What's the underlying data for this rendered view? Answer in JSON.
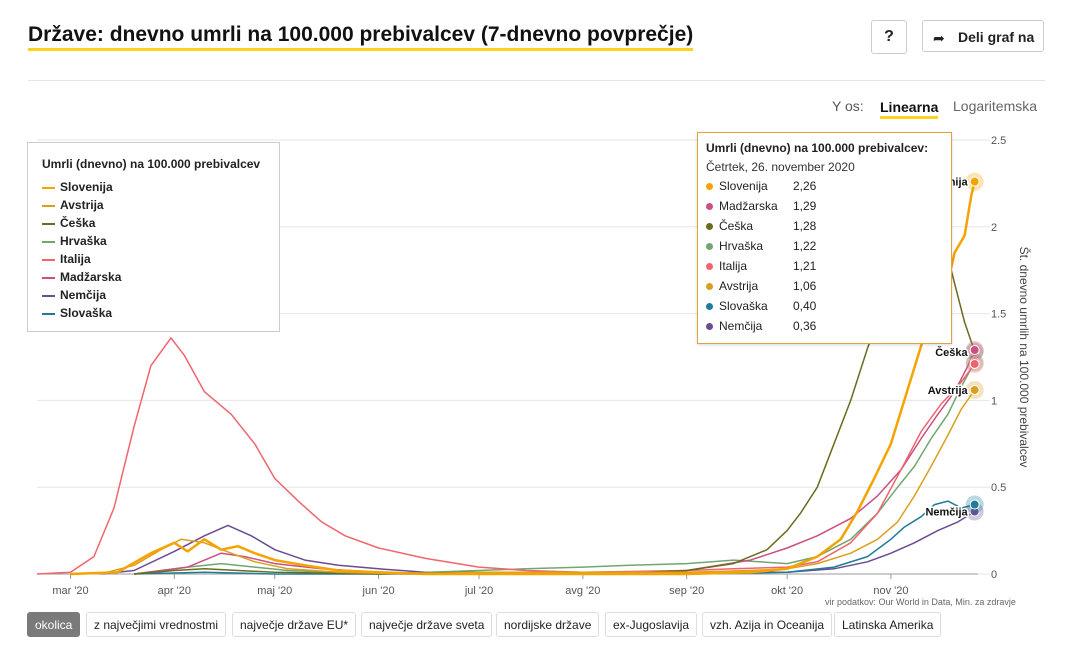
{
  "header": {
    "title": "Države: dnevno umrli na 100.000 prebivalcev (7-dnevno povprečje)",
    "help_label": "?",
    "share_label": "Deli graf na"
  },
  "yaxis_toggle": {
    "label": "Y os:",
    "linear": "Linearna",
    "log": "Logaritemska",
    "selected": "Linearna"
  },
  "legend": {
    "title": "Umrli (dnevno) na 100.000 prebivalcev"
  },
  "tooltip": {
    "title": "Umrli (dnevno) na 100.000 prebivalcev:",
    "date": "Četrtek, 26. november 2020",
    "rows": [
      {
        "name": "Slovenija",
        "value": "2,26",
        "color": "#f5a300"
      },
      {
        "name": "Madžarska",
        "value": "1,29",
        "color": "#c95081"
      },
      {
        "name": "Češka",
        "value": "1,28",
        "color": "#6b6b1f"
      },
      {
        "name": "Hrvaška",
        "value": "1,22",
        "color": "#6fa76f"
      },
      {
        "name": "Italija",
        "value": "1,21",
        "color": "#f0646e"
      },
      {
        "name": "Avstrija",
        "value": "1,06",
        "color": "#d9a020"
      },
      {
        "name": "Slovaška",
        "value": "0,40",
        "color": "#1f7c99"
      },
      {
        "name": "Nemčija",
        "value": "0,36",
        "color": "#6a4c93"
      }
    ]
  },
  "end_labels": [
    "Slovenija",
    "Češka",
    "Avstrija",
    "Nemčija"
  ],
  "source": "vir podatkov: Our World in Data, Min. za zdravje",
  "groups": [
    {
      "label": "okolica",
      "active": true
    },
    {
      "label": "z največjimi vrednostmi",
      "active": false
    },
    {
      "label": "največje države EU*",
      "active": false
    },
    {
      "label": "največje države sveta",
      "active": false
    },
    {
      "label": "nordijske države",
      "active": false
    },
    {
      "label": "ex-Jugoslavija",
      "active": false
    },
    {
      "label": "vzh. Azija in Oceanija",
      "active": false
    },
    {
      "label": "Latinska Amerika",
      "active": false
    }
  ],
  "chart_data": {
    "type": "line",
    "ylabel": "Št. dnevno umrlih na 100.000 prebivalcev",
    "ylim": [
      0,
      2.5
    ],
    "yticks": [
      0,
      0.5,
      1,
      1.5,
      2,
      2.5
    ],
    "ytick_labels": [
      "0",
      "0.5",
      "1",
      "1.5",
      "2",
      "2.5"
    ],
    "x_range": [
      "2020-02-20",
      "2020-11-27"
    ],
    "xticks": [
      "2020-03-01",
      "2020-04-01",
      "2020-05-01",
      "2020-06-01",
      "2020-07-01",
      "2020-08-01",
      "2020-09-01",
      "2020-10-01",
      "2020-11-01"
    ],
    "xtick_labels": [
      "mar '20",
      "apr '20",
      "maj '20",
      "jun '20",
      "jul '20",
      "avg '20",
      "sep '20",
      "okt '20",
      "nov '20"
    ],
    "grid": true,
    "legend_position": "top-left",
    "series": [
      {
        "name": "Slovenija",
        "color": "#f5a300",
        "width": 2.5,
        "points": [
          [
            "2020-03-01",
            0
          ],
          [
            "2020-03-15",
            0.01
          ],
          [
            "2020-03-25",
            0.12
          ],
          [
            "2020-04-01",
            0.18
          ],
          [
            "2020-04-05",
            0.13
          ],
          [
            "2020-04-10",
            0.2
          ],
          [
            "2020-04-15",
            0.14
          ],
          [
            "2020-04-20",
            0.16
          ],
          [
            "2020-04-25",
            0.12
          ],
          [
            "2020-05-01",
            0.08
          ],
          [
            "2020-05-10",
            0.05
          ],
          [
            "2020-05-20",
            0.02
          ],
          [
            "2020-06-01",
            0.01
          ],
          [
            "2020-06-15",
            0.0
          ],
          [
            "2020-07-01",
            0.0
          ],
          [
            "2020-08-01",
            0.0
          ],
          [
            "2020-09-01",
            0.0
          ],
          [
            "2020-09-20",
            0.01
          ],
          [
            "2020-10-01",
            0.03
          ],
          [
            "2020-10-10",
            0.1
          ],
          [
            "2020-10-17",
            0.2
          ],
          [
            "2020-10-22",
            0.36
          ],
          [
            "2020-10-27",
            0.55
          ],
          [
            "2020-11-01",
            0.75
          ],
          [
            "2020-11-05",
            1.0
          ],
          [
            "2020-11-09",
            1.25
          ],
          [
            "2020-11-13",
            1.5
          ],
          [
            "2020-11-17",
            1.6
          ],
          [
            "2020-11-20",
            1.85
          ],
          [
            "2020-11-23",
            1.95
          ],
          [
            "2020-11-25",
            2.18
          ],
          [
            "2020-11-26",
            2.26
          ]
        ]
      },
      {
        "name": "Avstrija",
        "color": "#d9a020",
        "width": 1.5,
        "points": [
          [
            "2020-03-10",
            0
          ],
          [
            "2020-03-20",
            0.05
          ],
          [
            "2020-03-28",
            0.14
          ],
          [
            "2020-04-03",
            0.2
          ],
          [
            "2020-04-10",
            0.18
          ],
          [
            "2020-04-18",
            0.12
          ],
          [
            "2020-04-25",
            0.07
          ],
          [
            "2020-05-05",
            0.03
          ],
          [
            "2020-05-20",
            0.01
          ],
          [
            "2020-06-10",
            0.0
          ],
          [
            "2020-07-01",
            0.01
          ],
          [
            "2020-08-01",
            0.01
          ],
          [
            "2020-09-01",
            0.01
          ],
          [
            "2020-09-20",
            0.02
          ],
          [
            "2020-10-01",
            0.03
          ],
          [
            "2020-10-10",
            0.06
          ],
          [
            "2020-10-20",
            0.12
          ],
          [
            "2020-10-28",
            0.2
          ],
          [
            "2020-11-03",
            0.3
          ],
          [
            "2020-11-08",
            0.45
          ],
          [
            "2020-11-13",
            0.62
          ],
          [
            "2020-11-18",
            0.8
          ],
          [
            "2020-11-22",
            0.95
          ],
          [
            "2020-11-26",
            1.06
          ]
        ]
      },
      {
        "name": "Češka",
        "color": "#6b6b1f",
        "width": 1.5,
        "points": [
          [
            "2020-03-20",
            0
          ],
          [
            "2020-04-01",
            0.02
          ],
          [
            "2020-04-10",
            0.03
          ],
          [
            "2020-05-01",
            0.01
          ],
          [
            "2020-06-01",
            0.0
          ],
          [
            "2020-07-01",
            0.01
          ],
          [
            "2020-08-01",
            0.01
          ],
          [
            "2020-08-20",
            0.01
          ],
          [
            "2020-09-01",
            0.02
          ],
          [
            "2020-09-15",
            0.06
          ],
          [
            "2020-09-25",
            0.14
          ],
          [
            "2020-10-01",
            0.25
          ],
          [
            "2020-10-05",
            0.35
          ],
          [
            "2020-10-10",
            0.5
          ],
          [
            "2020-10-15",
            0.75
          ],
          [
            "2020-10-20",
            1.0
          ],
          [
            "2020-10-25",
            1.3
          ],
          [
            "2020-10-30",
            1.55
          ],
          [
            "2020-11-03",
            1.8
          ],
          [
            "2020-11-07",
            1.95
          ],
          [
            "2020-11-11",
            1.88
          ],
          [
            "2020-11-15",
            1.9
          ],
          [
            "2020-11-19",
            1.75
          ],
          [
            "2020-11-23",
            1.45
          ],
          [
            "2020-11-26",
            1.28
          ]
        ]
      },
      {
        "name": "Hrvaška",
        "color": "#6fa76f",
        "width": 1.5,
        "points": [
          [
            "2020-03-20",
            0
          ],
          [
            "2020-04-05",
            0.04
          ],
          [
            "2020-04-15",
            0.06
          ],
          [
            "2020-04-25",
            0.04
          ],
          [
            "2020-05-05",
            0.02
          ],
          [
            "2020-06-01",
            0.0
          ],
          [
            "2020-07-01",
            0.02
          ],
          [
            "2020-07-15",
            0.03
          ],
          [
            "2020-08-01",
            0.04
          ],
          [
            "2020-08-15",
            0.05
          ],
          [
            "2020-09-01",
            0.06
          ],
          [
            "2020-09-15",
            0.08
          ],
          [
            "2020-10-01",
            0.06
          ],
          [
            "2020-10-10",
            0.1
          ],
          [
            "2020-10-20",
            0.2
          ],
          [
            "2020-10-28",
            0.35
          ],
          [
            "2020-11-03",
            0.5
          ],
          [
            "2020-11-08",
            0.62
          ],
          [
            "2020-11-13",
            0.78
          ],
          [
            "2020-11-18",
            0.92
          ],
          [
            "2020-11-22",
            1.08
          ],
          [
            "2020-11-26",
            1.22
          ]
        ]
      },
      {
        "name": "Italija",
        "color": "#f0646e",
        "width": 1.5,
        "points": [
          [
            "2020-02-20",
            0
          ],
          [
            "2020-03-01",
            0.01
          ],
          [
            "2020-03-08",
            0.1
          ],
          [
            "2020-03-14",
            0.38
          ],
          [
            "2020-03-20",
            0.85
          ],
          [
            "2020-03-25",
            1.2
          ],
          [
            "2020-03-31",
            1.36
          ],
          [
            "2020-04-04",
            1.26
          ],
          [
            "2020-04-10",
            1.05
          ],
          [
            "2020-04-18",
            0.92
          ],
          [
            "2020-04-25",
            0.75
          ],
          [
            "2020-05-01",
            0.55
          ],
          [
            "2020-05-08",
            0.42
          ],
          [
            "2020-05-15",
            0.3
          ],
          [
            "2020-05-22",
            0.22
          ],
          [
            "2020-06-01",
            0.15
          ],
          [
            "2020-06-15",
            0.09
          ],
          [
            "2020-07-01",
            0.04
          ],
          [
            "2020-07-15",
            0.02
          ],
          [
            "2020-08-01",
            0.01
          ],
          [
            "2020-09-01",
            0.02
          ],
          [
            "2020-09-15",
            0.03
          ],
          [
            "2020-10-01",
            0.04
          ],
          [
            "2020-10-10",
            0.07
          ],
          [
            "2020-10-20",
            0.18
          ],
          [
            "2020-10-28",
            0.35
          ],
          [
            "2020-11-04",
            0.6
          ],
          [
            "2020-11-10",
            0.82
          ],
          [
            "2020-11-16",
            0.98
          ],
          [
            "2020-11-21",
            1.08
          ],
          [
            "2020-11-26",
            1.21
          ]
        ]
      },
      {
        "name": "Madžarska",
        "color": "#c95081",
        "width": 1.5,
        "points": [
          [
            "2020-03-20",
            0
          ],
          [
            "2020-04-05",
            0.04
          ],
          [
            "2020-04-15",
            0.12
          ],
          [
            "2020-04-22",
            0.1
          ],
          [
            "2020-05-01",
            0.06
          ],
          [
            "2020-05-15",
            0.03
          ],
          [
            "2020-06-01",
            0.01
          ],
          [
            "2020-07-01",
            0.0
          ],
          [
            "2020-08-01",
            0.0
          ],
          [
            "2020-09-01",
            0.02
          ],
          [
            "2020-09-20",
            0.08
          ],
          [
            "2020-10-01",
            0.15
          ],
          [
            "2020-10-10",
            0.22
          ],
          [
            "2020-10-20",
            0.32
          ],
          [
            "2020-10-28",
            0.45
          ],
          [
            "2020-11-04",
            0.6
          ],
          [
            "2020-11-10",
            0.78
          ],
          [
            "2020-11-15",
            0.92
          ],
          [
            "2020-11-20",
            1.05
          ],
          [
            "2020-11-24",
            1.2
          ],
          [
            "2020-11-26",
            1.29
          ]
        ]
      },
      {
        "name": "Nemčija",
        "color": "#6a4c93",
        "width": 1.5,
        "points": [
          [
            "2020-03-10",
            0
          ],
          [
            "2020-03-20",
            0.02
          ],
          [
            "2020-04-01",
            0.13
          ],
          [
            "2020-04-10",
            0.22
          ],
          [
            "2020-04-17",
            0.28
          ],
          [
            "2020-04-24",
            0.22
          ],
          [
            "2020-05-01",
            0.14
          ],
          [
            "2020-05-10",
            0.08
          ],
          [
            "2020-05-20",
            0.05
          ],
          [
            "2020-06-01",
            0.03
          ],
          [
            "2020-06-15",
            0.01
          ],
          [
            "2020-07-01",
            0.01
          ],
          [
            "2020-08-01",
            0.0
          ],
          [
            "2020-09-01",
            0.01
          ],
          [
            "2020-10-01",
            0.01
          ],
          [
            "2020-10-15",
            0.03
          ],
          [
            "2020-10-25",
            0.07
          ],
          [
            "2020-11-01",
            0.12
          ],
          [
            "2020-11-08",
            0.18
          ],
          [
            "2020-11-15",
            0.25
          ],
          [
            "2020-11-21",
            0.3
          ],
          [
            "2020-11-26",
            0.36
          ]
        ]
      },
      {
        "name": "Slovaška",
        "color": "#1f7c99",
        "width": 1.5,
        "points": [
          [
            "2020-03-20",
            0
          ],
          [
            "2020-04-10",
            0.01
          ],
          [
            "2020-05-01",
            0.0
          ],
          [
            "2020-07-01",
            0.0
          ],
          [
            "2020-09-01",
            0.0
          ],
          [
            "2020-10-01",
            0.01
          ],
          [
            "2020-10-15",
            0.04
          ],
          [
            "2020-10-25",
            0.1
          ],
          [
            "2020-11-01",
            0.2
          ],
          [
            "2020-11-05",
            0.27
          ],
          [
            "2020-11-10",
            0.33
          ],
          [
            "2020-11-14",
            0.4
          ],
          [
            "2020-11-18",
            0.42
          ],
          [
            "2020-11-22",
            0.38
          ],
          [
            "2020-11-26",
            0.4
          ]
        ]
      }
    ]
  }
}
